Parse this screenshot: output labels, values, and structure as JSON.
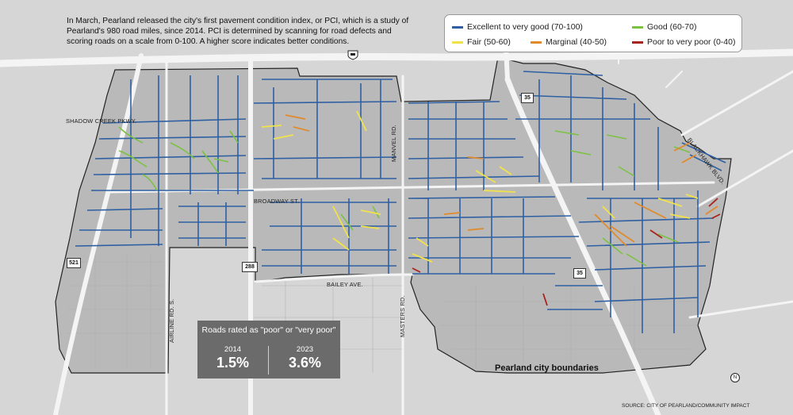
{
  "intro": {
    "text": "In March, Pearland released the city's first pavement condition index, or PCI, which is a study of Pearland's 980 road miles, since 2014. PCI is determined by scanning for road defects and scoring roads on a scale from 0-100. A higher score indicates better conditions."
  },
  "legend": {
    "items": [
      {
        "label": "Excellent to very good (70-100)",
        "color": "#2e5fa3"
      },
      {
        "label": "Good (60-70)",
        "color": "#7cc242"
      },
      {
        "label": "Fair (50-60)",
        "color": "#f2e24a"
      },
      {
        "label": "Marginal (40-50)",
        "color": "#e08a2c"
      },
      {
        "label": "Poor to very poor (0-40)",
        "color": "#a8231d"
      }
    ]
  },
  "stats": {
    "title": "Roads rated as \"poor\" or \"very poor\"",
    "years": [
      {
        "year": "2014",
        "value": "1.5%"
      },
      {
        "year": "2023",
        "value": "3.6%"
      }
    ]
  },
  "streets": {
    "shadow_creek": "SHADOW CREEK PKWY.",
    "broadway": "BROADWAY ST.",
    "bailey": "BAILEY AVE.",
    "airline": "AIRLINE RD. S.",
    "masters": "MASTERS RD.",
    "manvel": "MANVEL RD.",
    "blackhawk": "BLACKHAWK BLVD."
  },
  "shields": {
    "hwy521": "521",
    "hwy288": "288",
    "hwy35_north": "35",
    "hwy35_south": "35"
  },
  "city_boundary_label": "Pearland city boundaries",
  "north_label": "N",
  "source": "SOURCE: CITY OF PEARLAND/COMMUNITY IMPACT",
  "colors": {
    "background": "#d6d6d6",
    "city_fill": "#b9b9b9",
    "highway": "#f4f4f4",
    "excellent": "#2e5fa3",
    "good": "#7cc242",
    "fair": "#f2e24a",
    "marginal": "#e08a2c",
    "poor": "#a8231d"
  }
}
